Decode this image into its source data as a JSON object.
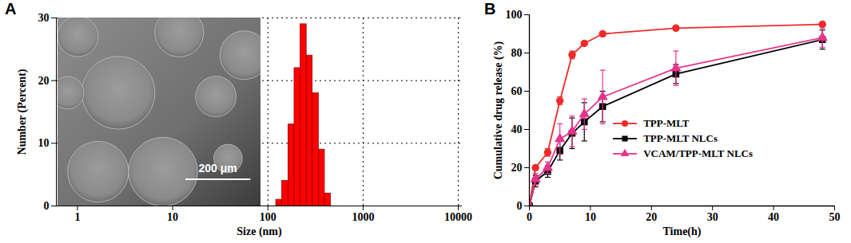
{
  "chart_data": [
    {
      "type": "histogram",
      "title": "A",
      "x_label": "Size (nm)",
      "y_label": "Number (Percent)",
      "bins": [
        122,
        141,
        164,
        190,
        220,
        255,
        295,
        342,
        396,
        459
      ],
      "counts": [
        1,
        4,
        13,
        22,
        29,
        24,
        18,
        9,
        2
      ],
      "color": "#ff0000",
      "log": "x",
      "xlim": [
        0.6,
        11000
      ],
      "xticks": [
        1,
        10,
        100,
        1000,
        10000
      ],
      "ylim": [
        0,
        30
      ],
      "yticks": [
        0,
        10,
        20,
        30
      ],
      "grid": true,
      "annotations": [
        "200 μm"
      ]
    },
    {
      "type": "line",
      "title": "B",
      "x_label": "Time(h)",
      "y_label": "Cumulative drug release (%)",
      "x": [
        0,
        1,
        3,
        5,
        7,
        9,
        12,
        24,
        48
      ],
      "series": [
        {
          "name": "TPP-MLT",
          "color": "#ee2a2a",
          "marker": "circle",
          "line_style": "solid",
          "values": [
            0,
            20,
            28,
            55,
            79,
            85,
            90,
            93,
            95
          ],
          "errors": [
            0,
            1,
            2,
            2,
            2,
            1,
            1,
            1,
            1
          ]
        },
        {
          "name": "TPP-MLT NLCs",
          "color": "#000000",
          "marker": "square",
          "line_style": "solid",
          "values": [
            0,
            13,
            18,
            29,
            38,
            44,
            52,
            69,
            87
          ],
          "errors": [
            0,
            3,
            3,
            5,
            8,
            10,
            8,
            5,
            5
          ]
        },
        {
          "name": "VCAM/TPP-MLT NLCs",
          "color": "#e8338c",
          "marker": "triangle",
          "line_style": "solid",
          "values": [
            0,
            14,
            20,
            35,
            39,
            48,
            57,
            72,
            88
          ],
          "errors": [
            0,
            3,
            3,
            8,
            8,
            8,
            14,
            9,
            5
          ]
        }
      ],
      "xlim": [
        0,
        50
      ],
      "xticks": [
        0,
        10,
        20,
        30,
        40,
        50
      ],
      "ylim": [
        0,
        100
      ],
      "yticks": [
        0,
        20,
        40,
        60,
        80,
        100
      ],
      "legend": "right",
      "grid": false
    }
  ]
}
